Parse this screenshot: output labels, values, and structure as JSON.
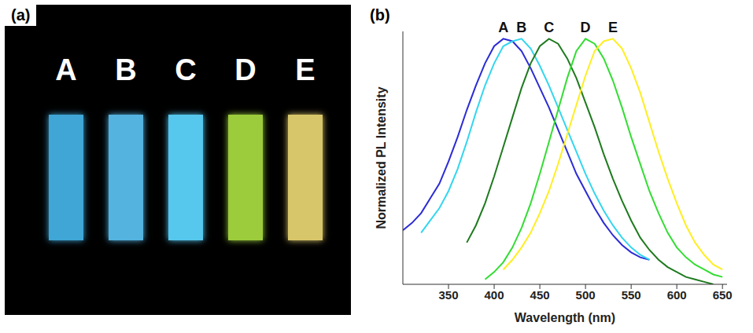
{
  "panel_a": {
    "label": "(a)",
    "strips": [
      {
        "label": "A",
        "color": "#3fa6d6"
      },
      {
        "label": "B",
        "color": "#55b3e0"
      },
      {
        "label": "C",
        "color": "#56c8ee"
      },
      {
        "label": "D",
        "color": "#9ccc3c"
      },
      {
        "label": "E",
        "color": "#d8c66a"
      }
    ]
  },
  "chart_data": {
    "panel_label": "(b)",
    "type": "line",
    "x_label": "Wavelength (nm)",
    "y_label": "Normalized PL Intensity",
    "x": [
      300,
      310,
      320,
      330,
      340,
      350,
      360,
      370,
      380,
      390,
      400,
      410,
      420,
      430,
      440,
      450,
      460,
      470,
      480,
      490,
      500,
      510,
      520,
      530,
      540,
      550,
      560,
      570,
      580,
      590,
      600,
      610,
      620,
      630,
      640,
      650
    ],
    "series": [
      {
        "name": "A",
        "color": "#2b2bd6",
        "values": [
          0.22,
          0.25,
          0.29,
          0.35,
          0.41,
          0.5,
          0.6,
          0.71,
          0.81,
          0.9,
          0.97,
          1.0,
          0.99,
          0.95,
          0.88,
          0.8,
          0.72,
          0.63,
          0.54,
          0.45,
          0.38,
          0.31,
          0.25,
          0.2,
          0.16,
          0.13,
          0.11,
          0.1,
          null,
          null,
          null,
          null,
          null,
          null,
          null,
          null
        ]
      },
      {
        "name": "B",
        "color": "#33d6f0",
        "values": [
          null,
          null,
          0.21,
          0.26,
          0.31,
          0.38,
          0.47,
          0.58,
          0.7,
          0.81,
          0.9,
          0.97,
          0.99,
          1.0,
          0.96,
          0.89,
          0.81,
          0.72,
          0.63,
          0.54,
          0.45,
          0.37,
          0.3,
          0.24,
          0.19,
          0.15,
          0.12,
          0.1,
          null,
          null,
          null,
          null,
          null,
          null,
          null,
          null
        ]
      },
      {
        "name": "C",
        "color": "#1e7a1e",
        "values": [
          null,
          null,
          null,
          null,
          null,
          null,
          null,
          0.17,
          0.24,
          0.33,
          0.44,
          0.56,
          0.68,
          0.8,
          0.9,
          0.97,
          1.0,
          0.98,
          0.92,
          0.84,
          0.74,
          0.64,
          0.53,
          0.43,
          0.34,
          0.26,
          0.19,
          0.14,
          0.1,
          0.07,
          0.05,
          0.03,
          0.02,
          0.01,
          0.0,
          null
        ]
      },
      {
        "name": "D",
        "color": "#33dd33",
        "values": [
          null,
          null,
          null,
          null,
          null,
          null,
          null,
          null,
          null,
          0.02,
          0.05,
          0.09,
          0.15,
          0.23,
          0.33,
          0.45,
          0.58,
          0.71,
          0.84,
          0.95,
          1.0,
          0.98,
          0.92,
          0.83,
          0.72,
          0.6,
          0.49,
          0.38,
          0.29,
          0.21,
          0.15,
          0.11,
          0.08,
          0.06,
          0.04,
          0.03
        ]
      },
      {
        "name": "E",
        "color": "#ffee22",
        "values": [
          null,
          null,
          null,
          null,
          null,
          null,
          null,
          null,
          null,
          null,
          null,
          0.06,
          0.1,
          0.15,
          0.21,
          0.29,
          0.38,
          0.49,
          0.61,
          0.73,
          0.85,
          0.95,
          0.99,
          1.0,
          0.96,
          0.88,
          0.78,
          0.66,
          0.54,
          0.43,
          0.33,
          0.24,
          0.17,
          0.12,
          0.08,
          0.06
        ]
      }
    ],
    "xlim": [
      300,
      655
    ],
    "xticks": [
      350,
      400,
      450,
      500,
      550,
      600,
      650
    ],
    "ylim": [
      0,
      1.03
    ],
    "tick_labels": "x",
    "grid": false
  }
}
